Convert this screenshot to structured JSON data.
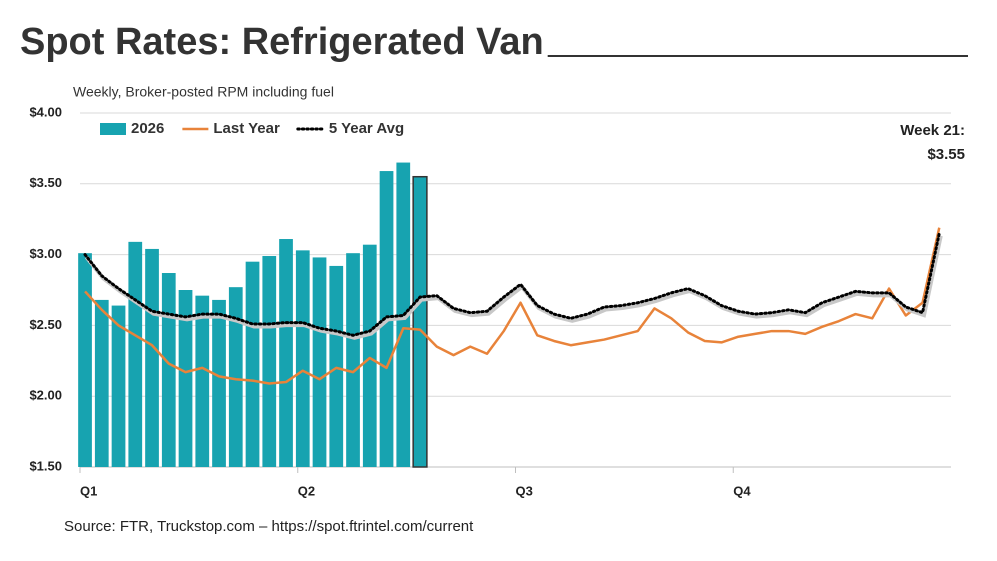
{
  "chart_data": {
    "type": "bar",
    "title": "Spot Rates: Refrigerated Van",
    "subtitle": "Weekly, Broker-posted RPM including fuel",
    "source": "Source: FTR, Truckstop.com – https://spot.ftrintel.com/current",
    "annotation": [
      "Week 21:",
      "$3.55"
    ],
    "x": [
      1,
      2,
      3,
      4,
      5,
      6,
      7,
      8,
      9,
      10,
      11,
      12,
      13,
      14,
      15,
      16,
      17,
      18,
      19,
      20,
      21,
      22,
      23,
      24,
      25,
      26,
      27,
      28,
      29,
      30,
      31,
      32,
      33,
      34,
      35,
      36,
      37,
      38,
      39,
      40,
      41,
      42,
      43,
      44,
      45,
      46,
      47,
      48,
      49,
      50,
      51,
      52
    ],
    "xlim": [
      0.7,
      52.7
    ],
    "xticks": [
      {
        "value": 0.7,
        "label": "Q1"
      },
      {
        "value": 13.7,
        "label": "Q2"
      },
      {
        "value": 26.7,
        "label": "Q3"
      },
      {
        "value": 39.7,
        "label": "Q4"
      }
    ],
    "ylim": [
      1.5,
      4.0
    ],
    "yticks": [
      {
        "value": 1.5,
        "label": "$1.50"
      },
      {
        "value": 2.0,
        "label": "$2.00"
      },
      {
        "value": 2.5,
        "label": "$2.50"
      },
      {
        "value": 3.0,
        "label": "$3.00"
      },
      {
        "value": 3.5,
        "label": "$3.50"
      },
      {
        "value": 4.0,
        "label": "$4.00"
      }
    ],
    "grid": true,
    "legend": "upper left",
    "series": [
      {
        "name": "2026",
        "type": "bar",
        "color": "#17a3b0",
        "values": [
          3.01,
          2.68,
          2.64,
          3.09,
          3.04,
          2.87,
          2.75,
          2.71,
          2.68,
          2.77,
          2.95,
          2.99,
          3.11,
          3.03,
          2.98,
          2.92,
          3.01,
          3.07,
          3.59,
          3.65,
          3.55,
          null,
          null,
          null,
          null,
          null,
          null,
          null,
          null,
          null,
          null,
          null,
          null,
          null,
          null,
          null,
          null,
          null,
          null,
          null,
          null,
          null,
          null,
          null,
          null,
          null,
          null,
          null,
          null,
          null,
          null,
          null
        ]
      },
      {
        "name": "Last Year",
        "type": "line",
        "color": "#e8833a",
        "values": [
          2.74,
          2.61,
          2.5,
          2.43,
          2.36,
          2.23,
          2.17,
          2.2,
          2.14,
          2.12,
          2.11,
          2.09,
          2.1,
          2.18,
          2.12,
          2.2,
          2.17,
          2.27,
          2.2,
          2.48,
          2.47,
          2.35,
          2.29,
          2.35,
          2.3,
          2.46,
          2.66,
          2.43,
          2.39,
          2.36,
          2.38,
          2.4,
          2.43,
          2.46,
          2.62,
          2.55,
          2.45,
          2.39,
          2.38,
          2.42,
          2.44,
          2.46,
          2.46,
          2.44,
          2.49,
          2.53,
          2.58,
          2.55,
          2.76,
          2.57,
          2.66,
          3.19
        ]
      },
      {
        "name": "5 Year Avg",
        "type": "dotted",
        "color": "#000000",
        "values": [
          3.0,
          2.85,
          2.76,
          2.68,
          2.6,
          2.58,
          2.56,
          2.58,
          2.58,
          2.55,
          2.51,
          2.51,
          2.52,
          2.52,
          2.48,
          2.46,
          2.43,
          2.46,
          2.56,
          2.57,
          2.7,
          2.71,
          2.62,
          2.59,
          2.6,
          2.7,
          2.79,
          2.64,
          2.58,
          2.55,
          2.58,
          2.63,
          2.64,
          2.66,
          2.69,
          2.73,
          2.76,
          2.71,
          2.64,
          2.6,
          2.58,
          2.59,
          2.61,
          2.59,
          2.66,
          2.7,
          2.74,
          2.73,
          2.73,
          2.63,
          2.59,
          3.15
        ]
      }
    ]
  }
}
